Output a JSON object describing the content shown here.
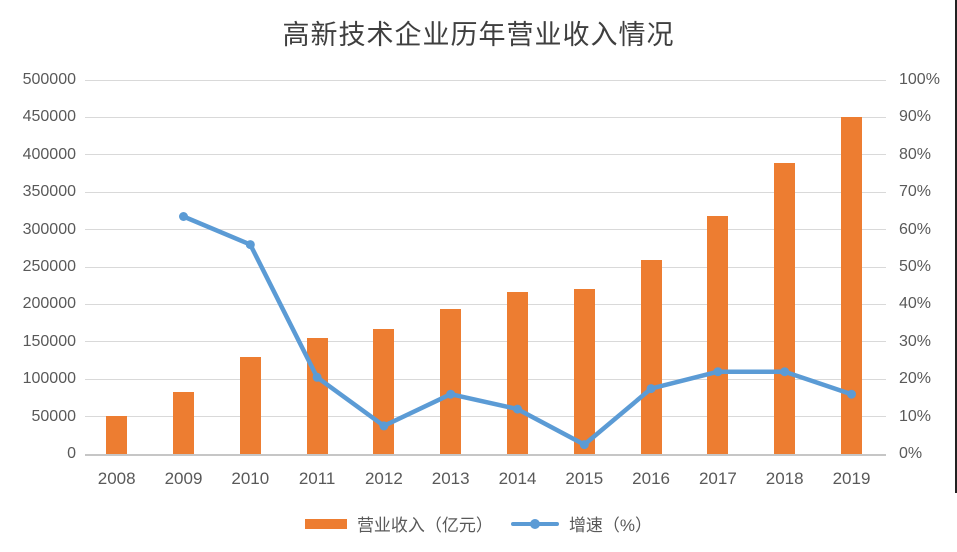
{
  "chart_data": {
    "type": "bar",
    "combo": true,
    "title": "高新技术企业历年营业收入情况",
    "categories": [
      "2008",
      "2009",
      "2010",
      "2011",
      "2012",
      "2013",
      "2014",
      "2015",
      "2016",
      "2017",
      "2018",
      "2019"
    ],
    "series": [
      {
        "name": "营业收入（亿元）",
        "type": "bar",
        "axis": "left",
        "color": "#ED7D31",
        "values": [
          51000,
          83000,
          130000,
          155000,
          167000,
          194000,
          216000,
          221000,
          260000,
          318000,
          389000,
          450000
        ]
      },
      {
        "name": "增速（%）",
        "type": "line",
        "axis": "right",
        "color": "#5B9BD5",
        "values": [
          null,
          63.5,
          56,
          20.5,
          7.5,
          16,
          12,
          2.5,
          17.5,
          22,
          22,
          16
        ]
      }
    ],
    "left_axis": {
      "min": 0,
      "max": 500000,
      "step": 50000,
      "tick_labels": [
        "500000",
        "450000",
        "400000",
        "350000",
        "300000",
        "250000",
        "200000",
        "150000",
        "100000",
        "50000",
        "0"
      ]
    },
    "right_axis": {
      "min": 0,
      "max": 100,
      "step": 10,
      "tick_labels": [
        "100%",
        "90%",
        "80%",
        "70%",
        "60%",
        "50%",
        "40%",
        "30%",
        "20%",
        "10%",
        "0%"
      ]
    },
    "grid": true,
    "legend_position": "bottom"
  },
  "colors": {
    "background": "#FFFFFF",
    "gridline": "#D9D9D9",
    "axis_line": "#C6C6C6",
    "label_text": "#595959",
    "title_text": "#3F3F3F",
    "bar": "#ED7D31",
    "line": "#5B9BD5",
    "edge_line": "#222222"
  }
}
